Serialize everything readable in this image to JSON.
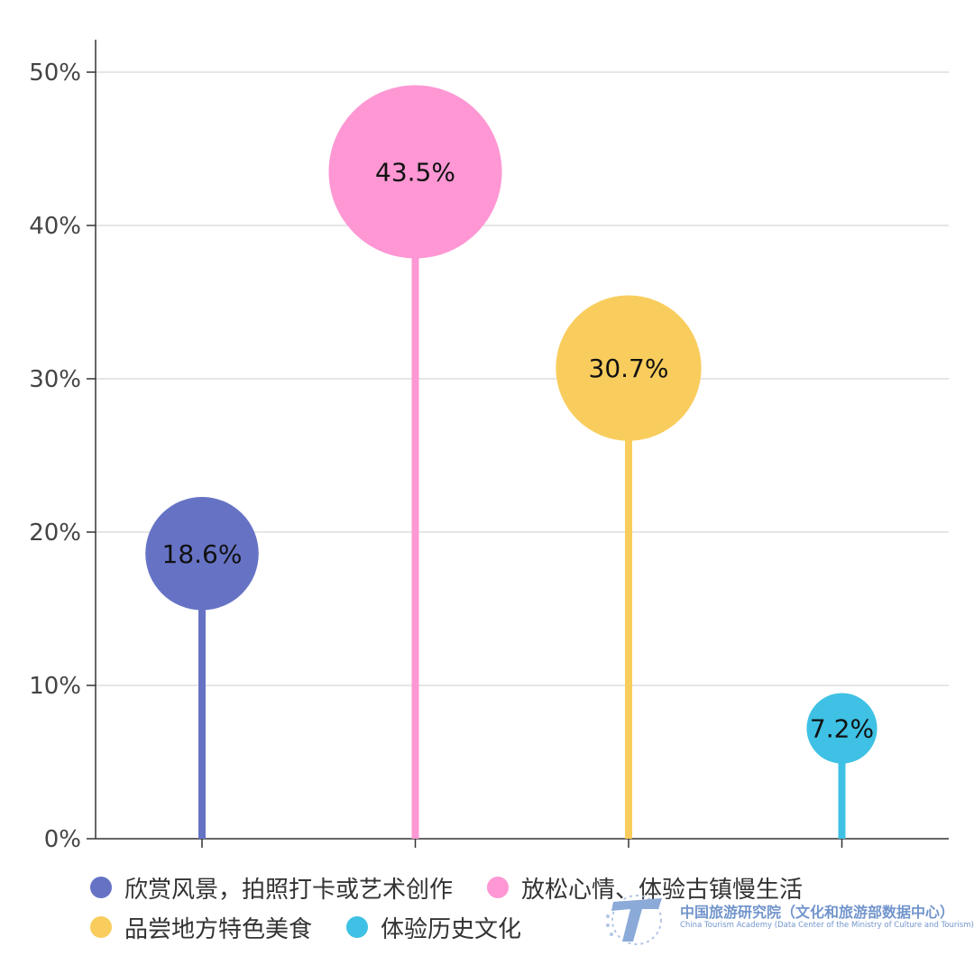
{
  "chart_data": {
    "type": "lollipop",
    "categories": [
      "欣赏风景，拍照打卡或艺术创作",
      "放松心情、体验古镇慢生活",
      "品尝地方特色美食",
      "体验历史文化"
    ],
    "values": [
      18.6,
      43.5,
      30.7,
      7.2
    ],
    "value_labels": [
      "18.6%",
      "43.5%",
      "30.7%",
      "7.2%"
    ],
    "colors": [
      "#6673c5",
      "#fe97d4",
      "#f9cd5d",
      "#3ec1e4"
    ],
    "yticks": [
      "0%",
      "10%",
      "20%",
      "30%",
      "40%",
      "50%"
    ],
    "ylim": [
      0,
      50
    ],
    "grid": true,
    "legend_position": "bottom"
  },
  "legend": {
    "rows": [
      [
        {
          "label": "欣赏风景，拍照打卡或艺术创作",
          "color": "#6673c5"
        },
        {
          "label": "放松心情、体验古镇慢生活",
          "color": "#fe97d4"
        }
      ],
      [
        {
          "label": "品尝地方特色美食",
          "color": "#f9cd5d"
        },
        {
          "label": "体验历史文化",
          "color": "#3ec1e4"
        }
      ]
    ]
  },
  "watermark": {
    "org_cn": "中国旅游研究院（文化和旅游部数据中心）",
    "org_en": "China Tourism Academy (Data Center of the Ministry of Culture and Tourism)",
    "icon": "tourism-academy-logo-icon"
  }
}
